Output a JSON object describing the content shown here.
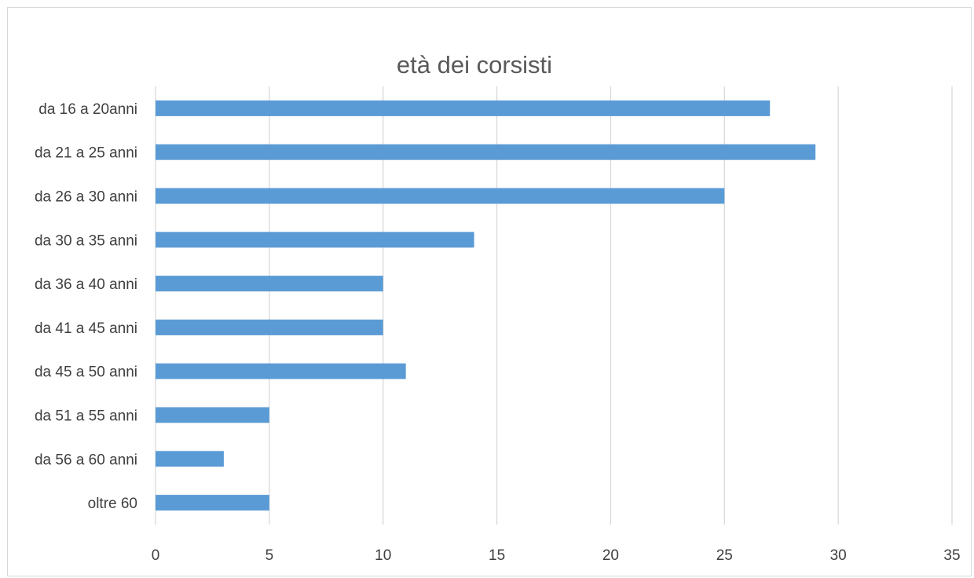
{
  "chart_data": {
    "type": "bar",
    "orientation": "horizontal",
    "title": "età dei corsisti",
    "categories": [
      "da 16 a 20anni",
      "da 21 a 25 anni",
      "da 26 a 30 anni",
      "da 30 a 35 anni",
      "da 36 a 40 anni",
      "da 41 a 45 anni",
      "da 45 a 50 anni",
      "da 51 a 55 anni",
      "da 56 a 60 anni",
      "oltre 60"
    ],
    "values": [
      27,
      29,
      25,
      14,
      10,
      10,
      11,
      5,
      3,
      5
    ],
    "xlim": [
      0,
      35
    ],
    "xticks": [
      "0",
      "5",
      "10",
      "15",
      "20",
      "25",
      "30",
      "35"
    ],
    "xlabel": "",
    "ylabel": "",
    "grid": "vertical",
    "legend": "none",
    "bar_color": "#5b9bd5"
  }
}
